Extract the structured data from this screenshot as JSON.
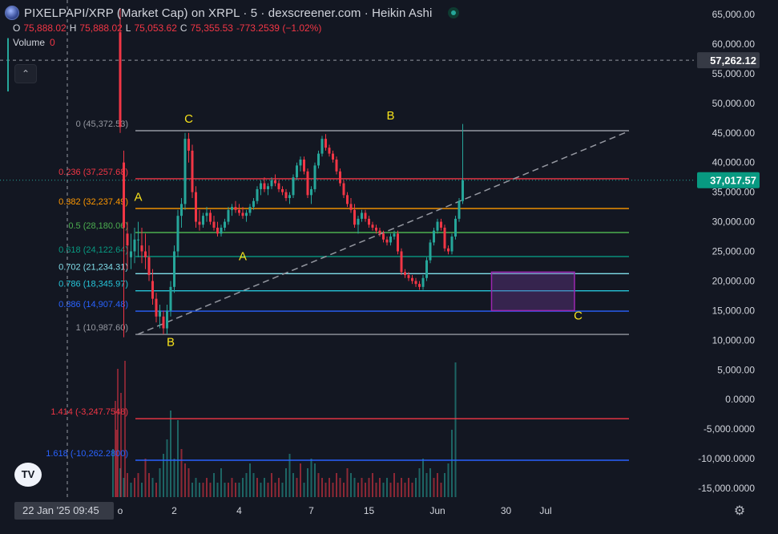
{
  "header": {
    "title": "PIXELPAPI/XRP (Market Cap) on XRPL · 5 · dexscreener.com · Heikin Ashi",
    "ohlc": [
      {
        "label": "O",
        "value": "75,888.02"
      },
      {
        "label": "H",
        "value": "75,888.02"
      },
      {
        "label": "L",
        "value": "75,053.62"
      },
      {
        "label": "C",
        "value": "75,355.53"
      },
      {
        "label": "",
        "value": "-773.2539 (−1.02%)"
      }
    ],
    "volume_label": "Volume",
    "volume_value": "0",
    "collapse_glyph": "⌃",
    "logo_text": "TV"
  },
  "time_badge": "22 Jan '25   09:45",
  "colors": {
    "background": "#131722",
    "up": "#26a69a",
    "down": "#f23645",
    "axis_text": "#d1d4dc",
    "fib_grey": "#9598a1",
    "fib_red": "#f23645",
    "fib_orange": "#ff9800",
    "fib_green": "#4caf50",
    "fib_teal": "#089981",
    "fib_cyan": "#80deea",
    "fib_light_teal": "#26c6da",
    "fib_blue": "#2962ff",
    "annotation": "#f7e21b",
    "box": "#9c27b0"
  },
  "chart_data": {
    "type": "candlestick",
    "style": "Heikin Ashi",
    "symbol": "PIXELPAPI/XRP (Market Cap)",
    "ylim": [
      -16500,
      67000
    ],
    "y_ticks": [
      "65,000.00",
      "60,000.00",
      "55,000.00",
      "50,000.00",
      "45,000.00",
      "40,000.00",
      "35,000.00",
      "30,000.00",
      "25,000.00",
      "20,000.00",
      "15,000.00",
      "10,000.00",
      "5,000.00",
      "0.0000",
      "-5,000.0000",
      "-10,000.0000",
      "-15,000.0000"
    ],
    "y_tick_values": [
      65000,
      60000,
      55000,
      50000,
      45000,
      40000,
      35000,
      30000,
      25000,
      20000,
      15000,
      10000,
      5000,
      0,
      -5000,
      -10000,
      -15000
    ],
    "x_ticks": [
      {
        "label": "o",
        "slot": 3
      },
      {
        "label": "2",
        "slot": 18
      },
      {
        "label": "4",
        "slot": 36
      },
      {
        "label": "7",
        "slot": 56
      },
      {
        "label": "15",
        "slot": 72
      },
      {
        "label": "Jun",
        "slot": 91
      },
      {
        "label": "30",
        "slot": 110
      },
      {
        "label": "Jul",
        "slot": 121
      }
    ],
    "price_labels": [
      {
        "value": 57262.12,
        "text": "57,262.12",
        "style": "crosshair"
      },
      {
        "value": 37017.57,
        "text": "37,017.57",
        "style": "last"
      }
    ],
    "fib_levels": [
      {
        "ratio": "0",
        "price": 45372.53,
        "label": "0 (45,372.53)",
        "color": "#9598a1"
      },
      {
        "ratio": "0.236",
        "price": 37257.68,
        "label": "0.236 (37,257.68)",
        "color": "#f23645"
      },
      {
        "ratio": "0.382",
        "price": 32237.49,
        "label": "0.382 (32,237.49)",
        "color": "#ff9800"
      },
      {
        "ratio": "0.5",
        "price": 28180.06,
        "label": "0.5 (28,180.06)",
        "color": "#4caf50"
      },
      {
        "ratio": "0.618",
        "price": 24122.64,
        "label": "0.618 (24,122.64)",
        "color": "#089981"
      },
      {
        "ratio": "0.702",
        "price": 21234.31,
        "label": "0.702 (21,234.31)",
        "color": "#80deea"
      },
      {
        "ratio": "0.786",
        "price": 18345.97,
        "label": "0.786 (18,345.97)",
        "color": "#26c6da"
      },
      {
        "ratio": "0.886",
        "price": 14907.48,
        "label": "0.886 (14,907.48)",
        "color": "#2962ff"
      },
      {
        "ratio": "1",
        "price": 10987.6,
        "label": "1 (10,987.60)",
        "color": "#9598a1"
      },
      {
        "ratio": "1.414",
        "price": -3247.7548,
        "label": "1.414 (-3,247.7548)",
        "color": "#f23645"
      },
      {
        "ratio": "1.618",
        "price": -10262.28,
        "label": "1.618 (-10,262.2800)",
        "color": "#2962ff"
      }
    ],
    "annotations": [
      {
        "text": "C",
        "slot": 19,
        "price": 46700
      },
      {
        "text": "B",
        "slot": 75,
        "price": 47300
      },
      {
        "text": "A",
        "slot": 5,
        "price": 33500
      },
      {
        "text": "A",
        "slot": 34,
        "price": 23500
      },
      {
        "text": "B",
        "slot": 14,
        "price": 9000
      },
      {
        "text": "C",
        "slot": 127,
        "price": 13500
      }
    ],
    "trend_line": {
      "from": {
        "slot": 0,
        "price": 11000
      },
      "to": {
        "slot": 145,
        "price": 45300
      }
    },
    "box": {
      "slot_from": 103,
      "slot_to": 126,
      "price_top": 21500,
      "price_bottom": 15000
    },
    "candles": [
      [
        62000,
        66000,
        45000,
        46000
      ],
      [
        40000,
        42000,
        10500,
        29000
      ],
      [
        28000,
        30000,
        22000,
        26000
      ],
      [
        24000,
        28000,
        22000,
        25000
      ],
      [
        25000,
        29000,
        23000,
        27000
      ],
      [
        27000,
        30000,
        24000,
        27000
      ],
      [
        26000,
        29000,
        23000,
        25000
      ],
      [
        25000,
        28000,
        22000,
        24000
      ],
      [
        24000,
        26000,
        20000,
        21000
      ],
      [
        20000,
        22000,
        16000,
        17000
      ],
      [
        17000,
        18000,
        13000,
        14000
      ],
      [
        14000,
        16000,
        12000,
        15000
      ],
      [
        14000,
        15000,
        11000,
        12000
      ],
      [
        12000,
        16000,
        11000,
        15000
      ],
      [
        15000,
        20000,
        14000,
        19000
      ],
      [
        19000,
        26000,
        18000,
        25000
      ],
      [
        25000,
        32000,
        24000,
        31000
      ],
      [
        31000,
        34000,
        29000,
        33000
      ],
      [
        33000,
        45000,
        32000,
        44000
      ],
      [
        44000,
        45000,
        40000,
        42000
      ],
      [
        42000,
        43000,
        34000,
        35000
      ],
      [
        35000,
        36000,
        29000,
        30000
      ],
      [
        30000,
        32000,
        28500,
        29500
      ],
      [
        29500,
        31500,
        29000,
        31000
      ],
      [
        31000,
        32500,
        30000,
        31500
      ],
      [
        31500,
        32000,
        29500,
        30000
      ],
      [
        30000,
        31000,
        28500,
        29000
      ],
      [
        29000,
        30000,
        27500,
        28000
      ],
      [
        28000,
        29500,
        27500,
        29000
      ],
      [
        29000,
        30500,
        28500,
        30000
      ],
      [
        30000,
        32500,
        29500,
        32000
      ],
      [
        32000,
        33000,
        31000,
        32500
      ],
      [
        32500,
        33500,
        31500,
        32000
      ],
      [
        32000,
        33000,
        31000,
        31500
      ],
      [
        31500,
        32500,
        30500,
        31000
      ],
      [
        31000,
        32000,
        30000,
        31500
      ],
      [
        31500,
        33000,
        31000,
        32500
      ],
      [
        32500,
        34000,
        32000,
        33500
      ],
      [
        33500,
        36000,
        33000,
        35500
      ],
      [
        35500,
        37000,
        34500,
        36500
      ],
      [
        36500,
        37500,
        35000,
        35500
      ],
      [
        35500,
        36500,
        34500,
        36000
      ],
      [
        36000,
        37500,
        35500,
        37000
      ],
      [
        37000,
        38000,
        36000,
        36500
      ],
      [
        36500,
        37000,
        35000,
        35500
      ],
      [
        35500,
        36000,
        34500,
        35000
      ],
      [
        35000,
        35500,
        33500,
        34000
      ],
      [
        34000,
        35000,
        33000,
        34500
      ],
      [
        34500,
        38000,
        34000,
        37500
      ],
      [
        37500,
        40000,
        37000,
        39500
      ],
      [
        39500,
        41000,
        38500,
        40500
      ],
      [
        40500,
        41000,
        38000,
        38500
      ],
      [
        38500,
        39000,
        34000,
        34500
      ],
      [
        34500,
        36000,
        33000,
        35500
      ],
      [
        35500,
        40000,
        35000,
        39500
      ],
      [
        39500,
        42000,
        39000,
        41500
      ],
      [
        41500,
        44500,
        41000,
        44000
      ],
      [
        44000,
        44800,
        42000,
        42500
      ],
      [
        42500,
        43000,
        41000,
        41500
      ],
      [
        41500,
        42000,
        40000,
        40500
      ],
      [
        40500,
        41000,
        38000,
        38500
      ],
      [
        38500,
        39000,
        36000,
        36500
      ],
      [
        36500,
        37000,
        34000,
        34500
      ],
      [
        34500,
        35000,
        32500,
        33000
      ],
      [
        33000,
        34000,
        31500,
        32000
      ],
      [
        32000,
        33000,
        29000,
        29500
      ],
      [
        29500,
        31000,
        28000,
        30500
      ],
      [
        30500,
        32000,
        30000,
        31500
      ],
      [
        31500,
        32000,
        30000,
        30500
      ],
      [
        30500,
        31000,
        29000,
        29500
      ],
      [
        29500,
        30000,
        28500,
        29000
      ],
      [
        29000,
        29500,
        28000,
        28500
      ],
      [
        28500,
        29000,
        27500,
        28000
      ],
      [
        28000,
        28500,
        26500,
        27000
      ],
      [
        27000,
        27500,
        26000,
        26500
      ],
      [
        26500,
        28000,
        26000,
        27500
      ],
      [
        27500,
        28500,
        27000,
        28000
      ],
      [
        28000,
        28500,
        24500,
        25000
      ],
      [
        25000,
        25500,
        21000,
        21500
      ],
      [
        21500,
        22000,
        20500,
        21000
      ],
      [
        21000,
        21500,
        20000,
        20500
      ],
      [
        20500,
        21000,
        19500,
        20000
      ],
      [
        20000,
        20500,
        19000,
        19500
      ],
      [
        19500,
        20000,
        18500,
        19000
      ],
      [
        19000,
        21000,
        18500,
        20500
      ],
      [
        20500,
        24000,
        20000,
        23500
      ],
      [
        23500,
        27000,
        23000,
        26500
      ],
      [
        26500,
        29000,
        26000,
        28500
      ],
      [
        28500,
        30500,
        28000,
        30000
      ],
      [
        30000,
        30500,
        28500,
        29000
      ],
      [
        29000,
        29500,
        25000,
        25500
      ],
      [
        25500,
        26000,
        24500,
        25000
      ],
      [
        25000,
        28000,
        24500,
        27500
      ],
      [
        27500,
        31000,
        27000,
        30500
      ],
      [
        30500,
        34000,
        30000,
        33500
      ],
      [
        33500,
        46500,
        33000,
        37000
      ]
    ],
    "volume": [
      [
        10,
        1
      ],
      [
        14,
        0
      ],
      [
        6,
        1
      ],
      [
        4,
        1
      ],
      [
        5,
        0
      ],
      [
        3,
        1
      ],
      [
        4,
        0
      ],
      [
        5,
        0
      ],
      [
        3,
        1
      ],
      [
        8,
        0
      ],
      [
        5,
        0
      ],
      [
        4,
        1
      ],
      [
        3,
        0
      ],
      [
        6,
        1
      ],
      [
        9,
        1
      ],
      [
        12,
        1
      ],
      [
        18,
        1
      ],
      [
        8,
        1
      ],
      [
        16,
        1
      ],
      [
        10,
        0
      ],
      [
        7,
        0
      ],
      [
        6,
        0
      ],
      [
        3,
        1
      ],
      [
        4,
        1
      ],
      [
        3,
        1
      ],
      [
        3,
        0
      ],
      [
        4,
        0
      ],
      [
        3,
        0
      ],
      [
        5,
        1
      ],
      [
        3,
        1
      ],
      [
        6,
        1
      ],
      [
        3,
        1
      ],
      [
        3,
        0
      ],
      [
        4,
        0
      ],
      [
        3,
        0
      ],
      [
        3,
        1
      ],
      [
        4,
        1
      ],
      [
        5,
        1
      ],
      [
        7,
        1
      ],
      [
        5,
        1
      ],
      [
        4,
        0
      ],
      [
        3,
        1
      ],
      [
        4,
        1
      ],
      [
        3,
        0
      ],
      [
        5,
        0
      ],
      [
        3,
        0
      ],
      [
        4,
        0
      ],
      [
        3,
        1
      ],
      [
        6,
        1
      ],
      [
        9,
        1
      ],
      [
        5,
        1
      ],
      [
        4,
        0
      ],
      [
        7,
        0
      ],
      [
        3,
        1
      ],
      [
        6,
        1
      ],
      [
        8,
        1
      ],
      [
        7,
        1
      ],
      [
        5,
        0
      ],
      [
        4,
        0
      ],
      [
        3,
        0
      ],
      [
        4,
        0
      ],
      [
        3,
        0
      ],
      [
        5,
        0
      ],
      [
        4,
        0
      ],
      [
        3,
        0
      ],
      [
        6,
        0
      ],
      [
        5,
        1
      ],
      [
        4,
        1
      ],
      [
        3,
        0
      ],
      [
        4,
        0
      ],
      [
        3,
        0
      ],
      [
        4,
        0
      ],
      [
        5,
        0
      ],
      [
        3,
        0
      ],
      [
        4,
        0
      ],
      [
        3,
        1
      ],
      [
        4,
        1
      ],
      [
        3,
        0
      ],
      [
        5,
        0
      ],
      [
        3,
        0
      ],
      [
        4,
        0
      ],
      [
        3,
        0
      ],
      [
        4,
        0
      ],
      [
        3,
        0
      ],
      [
        4,
        1
      ],
      [
        6,
        1
      ],
      [
        8,
        1
      ],
      [
        5,
        1
      ],
      [
        6,
        1
      ],
      [
        4,
        0
      ],
      [
        5,
        0
      ],
      [
        3,
        0
      ],
      [
        5,
        1
      ],
      [
        7,
        1
      ],
      [
        14,
        1
      ],
      [
        28,
        1
      ]
    ]
  }
}
